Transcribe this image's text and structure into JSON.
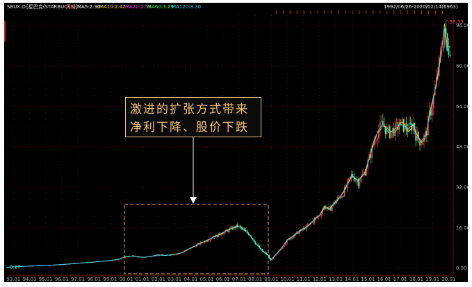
{
  "header": {
    "symbol": "SBUX.O",
    "name": "[星巴克(STARBUCKS)]",
    "period": "月线",
    "ma": [
      {
        "label": "MA5:2.30",
        "color": "#ffffff"
      },
      {
        "label": "MA10:2.42",
        "color": "#ffd000"
      },
      {
        "label": "MA20:2.55",
        "color": "#ff33ff"
      },
      {
        "label": "MA60:3.29",
        "color": "#33ff33"
      },
      {
        "label": "MA120:3.30",
        "color": "#33ccff"
      }
    ],
    "range": "1992/06/26-2020/02/14(6963)"
  },
  "annotation": {
    "line1": "激进的扩张方式带来",
    "line2": "净利下降、股价下跌",
    "text_color": "#f2c079",
    "box_border": "#e6c889",
    "dashed_color": "#f0a040"
  },
  "markers": {
    "high_label": "98.39",
    "low_label": "0.27"
  },
  "chart_data": {
    "type": "line",
    "title": "",
    "xlabel": "",
    "ylabel": "",
    "ylim": [
      -2,
      100
    ],
    "yticks": [
      0,
      16,
      32,
      48,
      64,
      80,
      96
    ],
    "ytick_labels": [
      "0.00",
      "16.00",
      "32.00",
      "48.00",
      "64.00",
      "80.00",
      "96.00"
    ],
    "xlim": [
      1992.6,
      2020.2
    ],
    "xticks": [
      1993,
      1994,
      1995,
      1996,
      1997,
      1998,
      1999,
      2000,
      2001,
      2002,
      2003,
      2004,
      2005,
      2006,
      2007,
      2008,
      2009,
      2010,
      2011,
      2012,
      2013,
      2014,
      2015,
      2016,
      2017,
      2018,
      2019,
      2020
    ],
    "xtick_labels": [
      "93.01",
      "94.01",
      "95.01",
      "96.01",
      "97.01",
      "98.01",
      "99.01",
      "00.01",
      "01.01",
      "02.01",
      "03.01",
      "04.01",
      "05.01",
      "06.01",
      "07.01",
      "08.01",
      "09.01",
      "10.01",
      "11.01",
      "12.01",
      "13.01",
      "14.01",
      "15.01",
      "16.01",
      "17.01",
      "18.01",
      "19.01",
      "20.01"
    ],
    "series": [
      {
        "name": "",
        "color": "#33ccff",
        "x": [
          1992.5,
          1993,
          1994,
          1995,
          1996,
          1997,
          1998,
          1999,
          1999.5,
          2000,
          2000.5,
          2001,
          2001.5,
          2002,
          2002.5,
          2003,
          2003.5,
          2004,
          2004.5,
          2005,
          2005.5,
          2006,
          2006.5,
          2006.9,
          2007.3,
          2007.7,
          2008,
          2008.4,
          2008.8,
          2008.95,
          2009.3,
          2009.7,
          2010,
          2010.5,
          2011,
          2011.5,
          2012,
          2012.3,
          2012.6,
          2013,
          2013.5,
          2014,
          2014.4,
          2014.8,
          2015,
          2015.3,
          2015.6,
          2015.9,
          2016.3,
          2016.7,
          2017,
          2017.5,
          2017.8,
          2018,
          2018.3,
          2018.6,
          2018.8,
          2019,
          2019.2,
          2019.4,
          2019.6,
          2019.75,
          2019.9,
          2020.1
        ],
        "values": [
          0.27,
          0.5,
          0.8,
          1.0,
          1.4,
          1.9,
          2.4,
          3.0,
          3.4,
          4.6,
          4.8,
          4.2,
          4.6,
          5.2,
          5.0,
          5.4,
          6.2,
          8.0,
          9.5,
          11.0,
          12.5,
          14.0,
          15.5,
          16.8,
          15.0,
          13.0,
          10.0,
          7.0,
          5.0,
          3.0,
          5.5,
          8.5,
          11.0,
          13.5,
          15.5,
          18.0,
          21.0,
          24.5,
          23.0,
          26.5,
          30.0,
          37.0,
          34.0,
          38.0,
          42.0,
          48.0,
          54.0,
          57.0,
          53.5,
          55.0,
          57.0,
          55.0,
          57.0,
          52.0,
          50.0,
          53.0,
          60.0,
          65.0,
          72.0,
          80.0,
          88.0,
          95.0,
          86.0,
          88.0
        ]
      }
    ],
    "high": {
      "x": 2019.75,
      "value": 98.39
    },
    "low": {
      "x": 1992.5,
      "value": 0.27
    }
  },
  "colors": {
    "background": "#ffffff",
    "panel": "#000000",
    "grid": "#8a1010",
    "axis_text": "#b0b0b0",
    "up": "#ff3b3b",
    "down": "#33ff99",
    "ma_long": "#33ccff",
    "ma_short": "#ffd000"
  }
}
